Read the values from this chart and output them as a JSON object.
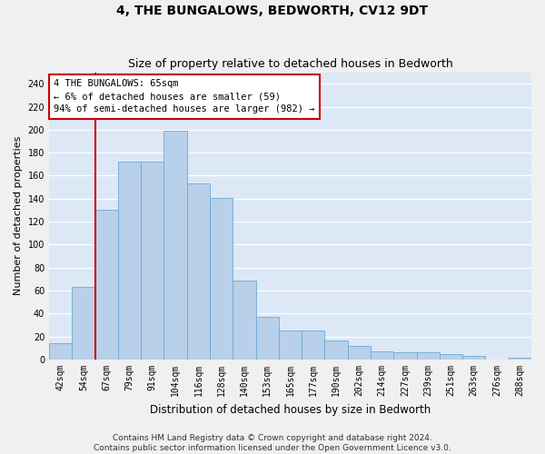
{
  "title": "4, THE BUNGALOWS, BEDWORTH, CV12 9DT",
  "subtitle": "Size of property relative to detached houses in Bedworth",
  "xlabel": "Distribution of detached houses by size in Bedworth",
  "ylabel": "Number of detached properties",
  "categories": [
    "42sqm",
    "54sqm",
    "67sqm",
    "79sqm",
    "91sqm",
    "104sqm",
    "116sqm",
    "128sqm",
    "140sqm",
    "153sqm",
    "165sqm",
    "177sqm",
    "190sqm",
    "202sqm",
    "214sqm",
    "227sqm",
    "239sqm",
    "251sqm",
    "263sqm",
    "276sqm",
    "288sqm"
  ],
  "values": [
    14,
    63,
    130,
    172,
    172,
    199,
    153,
    141,
    69,
    37,
    25,
    25,
    17,
    12,
    7,
    6,
    6,
    5,
    3,
    0,
    2
  ],
  "bar_color": "#b8d0ea",
  "bar_edge_color": "#6aaad4",
  "vline_x": 1.5,
  "vline_color": "#cc0000",
  "annotation_line1": "4 THE BUNGALOWS: 65sqm",
  "annotation_line2": "← 6% of detached houses are smaller (59)",
  "annotation_line3": "94% of semi-detached houses are larger (982) →",
  "annotation_box_facecolor": "#ffffff",
  "annotation_box_edgecolor": "#cc0000",
  "ylim": [
    0,
    250
  ],
  "yticks": [
    0,
    20,
    40,
    60,
    80,
    100,
    120,
    140,
    160,
    180,
    200,
    220,
    240
  ],
  "bg_color": "#dce8f5",
  "grid_color": "#ffffff",
  "title_fontsize": 10,
  "subtitle_fontsize": 9,
  "ylabel_fontsize": 8,
  "xlabel_fontsize": 8.5,
  "tick_fontsize": 7,
  "annotation_fontsize": 7.5,
  "footer_fontsize": 6.5,
  "footer": "Contains HM Land Registry data © Crown copyright and database right 2024.\nContains public sector information licensed under the Open Government Licence v3.0."
}
